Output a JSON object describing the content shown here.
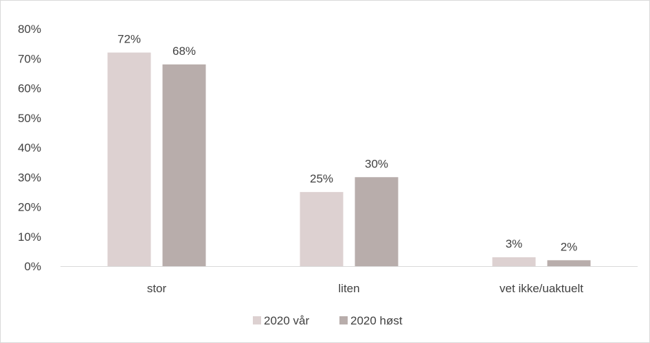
{
  "chart_data": {
    "type": "bar",
    "title": "",
    "xlabel": "",
    "ylabel": "",
    "categories": [
      "stor",
      "liten",
      "vet ikke/uaktuelt"
    ],
    "series": [
      {
        "name": "2020 vår",
        "values": [
          72,
          25,
          3
        ],
        "labels": [
          "72%",
          "25%",
          "3%"
        ],
        "color": "#ddd1d1"
      },
      {
        "name": "2020 høst",
        "values": [
          68,
          30,
          2
        ],
        "labels": [
          "68%",
          "30%",
          "2%"
        ],
        "color": "#b8adab"
      }
    ],
    "ylim": [
      0,
      80
    ],
    "yticks": [
      0,
      10,
      20,
      30,
      40,
      50,
      60,
      70,
      80
    ],
    "ytick_labels": [
      "0%",
      "10%",
      "20%",
      "30%",
      "40%",
      "50%",
      "60%",
      "70%",
      "80%"
    ],
    "grid": false,
    "legend": "bottom"
  }
}
